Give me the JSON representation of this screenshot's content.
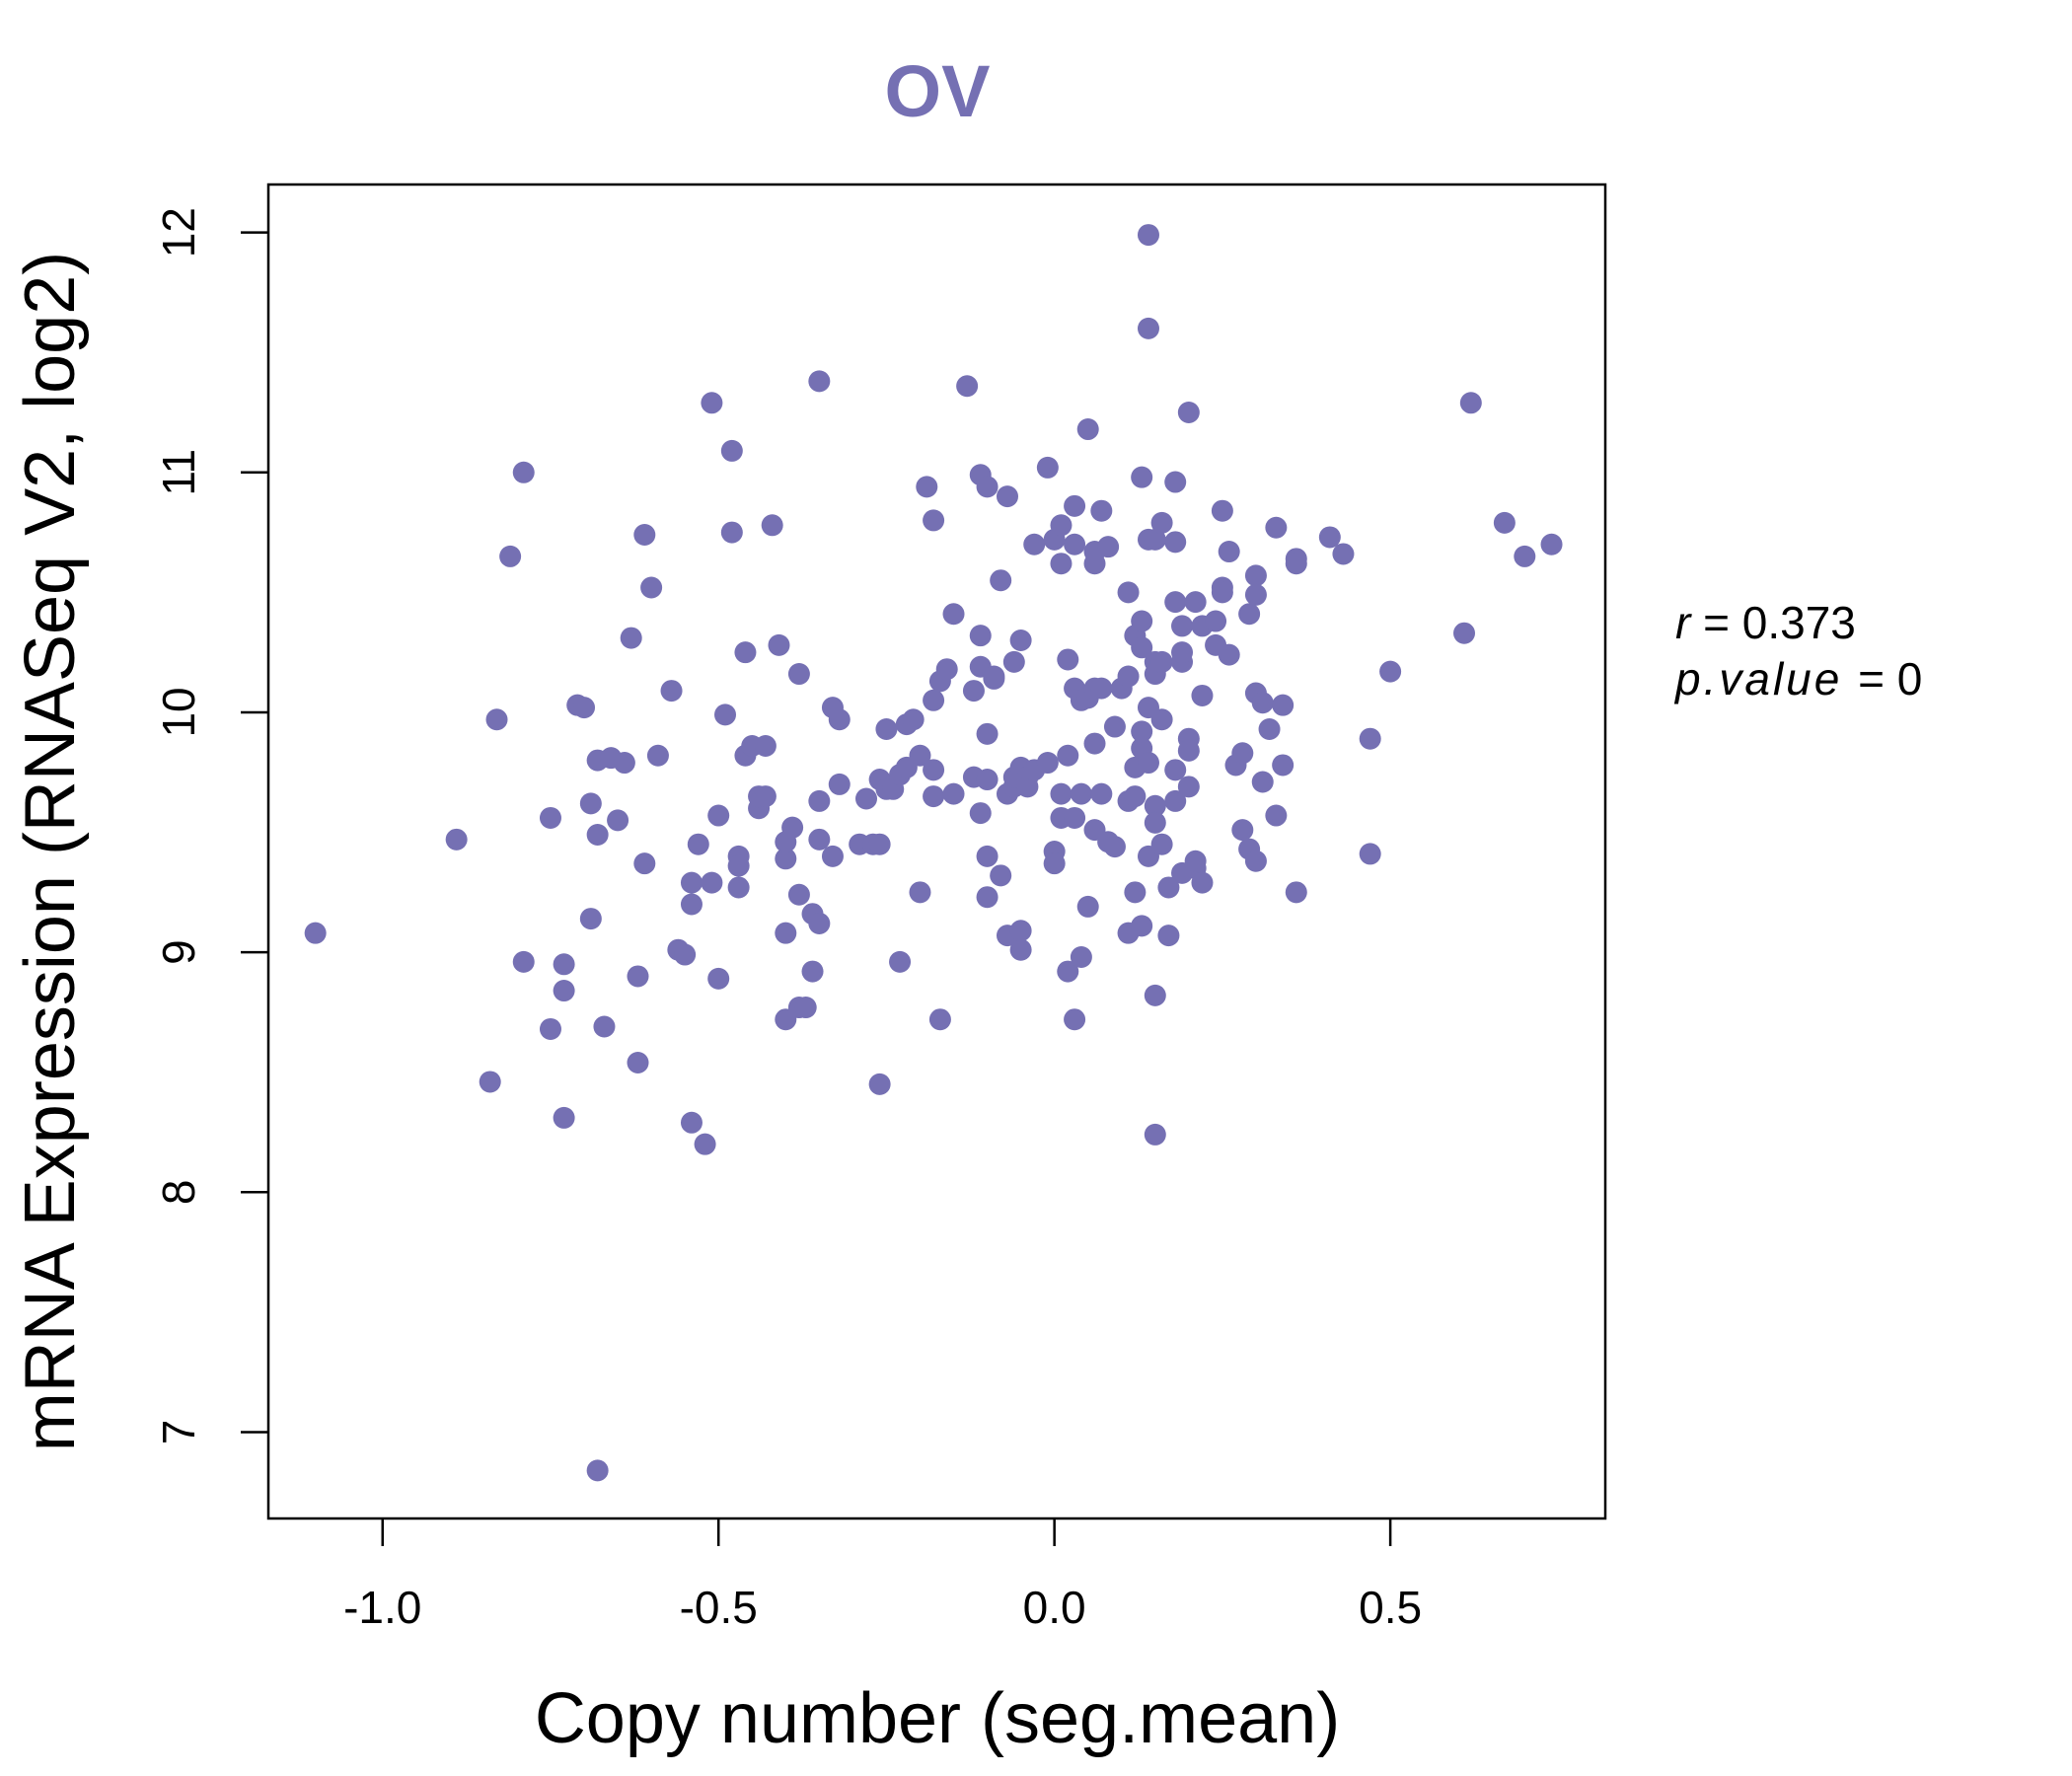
{
  "chart_data": {
    "type": "scatter",
    "title": "OV",
    "xlabel": "Copy number (seg.mean)",
    "ylabel": "mRNA Expression (RNASeq V2, log2)",
    "xlim": [
      -1.17,
      0.82
    ],
    "ylim": [
      6.64,
      12.2
    ],
    "x_ticks": [
      "-1.0",
      "-0.5",
      "0.0",
      "0.5"
    ],
    "x_tick_values": [
      -1.0,
      -0.5,
      0.0,
      0.5
    ],
    "y_ticks": [
      "7",
      "8",
      "9",
      "10",
      "11",
      "12"
    ],
    "y_tick_values": [
      7,
      8,
      9,
      10,
      11,
      12
    ],
    "grid": false,
    "legend": "none",
    "color": "#7570b3",
    "stats": {
      "r_label": "r",
      "r_value": "0.373",
      "p_label": "p.value",
      "p_value": "0"
    },
    "points": [
      [
        -1.1,
        9.08
      ],
      [
        -0.89,
        9.47
      ],
      [
        -0.84,
        8.46
      ],
      [
        -0.83,
        9.97
      ],
      [
        -0.81,
        10.65
      ],
      [
        -0.79,
        11.0
      ],
      [
        -0.79,
        8.96
      ],
      [
        -0.75,
        9.56
      ],
      [
        -0.75,
        8.68
      ],
      [
        -0.73,
        8.95
      ],
      [
        -0.73,
        8.84
      ],
      [
        -0.73,
        8.31
      ],
      [
        -0.71,
        10.03
      ],
      [
        -0.7,
        10.02
      ],
      [
        -0.69,
        9.62
      ],
      [
        -0.69,
        9.14
      ],
      [
        -0.68,
        9.8
      ],
      [
        -0.68,
        9.49
      ],
      [
        -0.68,
        6.84
      ],
      [
        -0.67,
        8.69
      ],
      [
        -0.66,
        9.81
      ],
      [
        -0.65,
        9.55
      ],
      [
        -0.64,
        9.79
      ],
      [
        -0.63,
        10.31
      ],
      [
        -0.62,
        8.9
      ],
      [
        -0.62,
        8.54
      ],
      [
        -0.61,
        10.74
      ],
      [
        -0.61,
        9.37
      ],
      [
        -0.6,
        10.52
      ],
      [
        -0.59,
        9.82
      ],
      [
        -0.57,
        10.09
      ],
      [
        -0.56,
        9.01
      ],
      [
        -0.55,
        8.99
      ],
      [
        -0.54,
        9.29
      ],
      [
        -0.54,
        9.2
      ],
      [
        -0.54,
        8.29
      ],
      [
        -0.53,
        9.45
      ],
      [
        -0.52,
        8.2
      ],
      [
        -0.51,
        11.29
      ],
      [
        -0.51,
        9.29
      ],
      [
        -0.5,
        8.89
      ],
      [
        -0.5,
        9.57
      ],
      [
        -0.49,
        9.99
      ],
      [
        -0.48,
        10.75
      ],
      [
        -0.48,
        11.09
      ],
      [
        -0.47,
        9.4
      ],
      [
        -0.47,
        9.36
      ],
      [
        -0.47,
        9.27
      ],
      [
        -0.46,
        10.25
      ],
      [
        -0.46,
        9.82
      ],
      [
        -0.45,
        9.86
      ],
      [
        -0.44,
        9.6
      ],
      [
        -0.44,
        9.65
      ],
      [
        -0.43,
        9.65
      ],
      [
        -0.43,
        9.86
      ],
      [
        -0.42,
        10.78
      ],
      [
        -0.41,
        10.28
      ],
      [
        -0.4,
        8.72
      ],
      [
        -0.4,
        9.08
      ],
      [
        -0.4,
        9.39
      ],
      [
        -0.4,
        9.46
      ],
      [
        -0.39,
        9.52
      ],
      [
        -0.38,
        10.16
      ],
      [
        -0.38,
        9.24
      ],
      [
        -0.38,
        8.77
      ],
      [
        -0.37,
        8.77
      ],
      [
        -0.36,
        9.16
      ],
      [
        -0.36,
        8.92
      ],
      [
        -0.35,
        11.38
      ],
      [
        -0.35,
        9.63
      ],
      [
        -0.35,
        9.47
      ],
      [
        -0.35,
        9.12
      ],
      [
        -0.33,
        10.02
      ],
      [
        -0.33,
        9.4
      ],
      [
        -0.32,
        9.97
      ],
      [
        -0.32,
        9.7
      ],
      [
        -0.29,
        9.45
      ],
      [
        -0.28,
        9.64
      ],
      [
        -0.27,
        9.45
      ],
      [
        -0.26,
        9.72
      ],
      [
        -0.26,
        9.45
      ],
      [
        -0.26,
        8.45
      ],
      [
        -0.25,
        9.93
      ],
      [
        -0.25,
        9.68
      ],
      [
        -0.24,
        9.68
      ],
      [
        -0.23,
        9.74
      ],
      [
        -0.23,
        8.96
      ],
      [
        -0.22,
        9.95
      ],
      [
        -0.22,
        9.77
      ],
      [
        -0.21,
        9.97
      ],
      [
        -0.2,
        9.82
      ],
      [
        -0.2,
        9.25
      ],
      [
        -0.19,
        10.94
      ],
      [
        -0.18,
        10.8
      ],
      [
        -0.18,
        10.05
      ],
      [
        -0.18,
        9.76
      ],
      [
        -0.18,
        9.65
      ],
      [
        -0.17,
        10.13
      ],
      [
        -0.17,
        8.72
      ],
      [
        -0.16,
        10.18
      ],
      [
        -0.15,
        10.41
      ],
      [
        -0.15,
        9.66
      ],
      [
        -0.13,
        11.36
      ],
      [
        -0.12,
        10.09
      ],
      [
        -0.12,
        9.73
      ],
      [
        -0.11,
        10.99
      ],
      [
        -0.11,
        10.32
      ],
      [
        -0.11,
        10.19
      ],
      [
        -0.11,
        9.58
      ],
      [
        -0.1,
        10.94
      ],
      [
        -0.1,
        9.91
      ],
      [
        -0.1,
        9.4
      ],
      [
        -0.1,
        9.72
      ],
      [
        -0.1,
        9.23
      ],
      [
        -0.09,
        10.14
      ],
      [
        -0.09,
        10.15
      ],
      [
        -0.08,
        10.55
      ],
      [
        -0.08,
        9.32
      ],
      [
        -0.07,
        10.9
      ],
      [
        -0.07,
        9.07
      ],
      [
        -0.07,
        9.66
      ],
      [
        -0.06,
        9.69
      ],
      [
        -0.06,
        9.73
      ],
      [
        -0.06,
        10.21
      ],
      [
        -0.05,
        10.3
      ],
      [
        -0.05,
        9.01
      ],
      [
        -0.05,
        9.09
      ],
      [
        -0.05,
        9.77
      ],
      [
        -0.04,
        9.73
      ],
      [
        -0.04,
        9.69
      ],
      [
        -0.03,
        10.7
      ],
      [
        -0.03,
        9.76
      ],
      [
        -0.01,
        9.79
      ],
      [
        -0.01,
        11.02
      ],
      [
        0.0,
        9.42
      ],
      [
        0.0,
        9.37
      ],
      [
        0.0,
        10.72
      ],
      [
        0.01,
        10.62
      ],
      [
        0.01,
        10.78
      ],
      [
        0.01,
        9.56
      ],
      [
        0.01,
        9.66
      ],
      [
        0.02,
        8.92
      ],
      [
        0.02,
        10.22
      ],
      [
        0.02,
        9.82
      ],
      [
        0.03,
        10.7
      ],
      [
        0.03,
        10.86
      ],
      [
        0.03,
        10.1
      ],
      [
        0.03,
        9.56
      ],
      [
        0.03,
        8.72
      ],
      [
        0.04,
        8.98
      ],
      [
        0.04,
        9.66
      ],
      [
        0.04,
        10.05
      ],
      [
        0.05,
        9.19
      ],
      [
        0.05,
        10.06
      ],
      [
        0.05,
        11.18
      ],
      [
        0.06,
        10.62
      ],
      [
        0.06,
        10.67
      ],
      [
        0.06,
        10.1
      ],
      [
        0.06,
        9.87
      ],
      [
        0.06,
        9.51
      ],
      [
        0.07,
        10.84
      ],
      [
        0.07,
        9.66
      ],
      [
        0.07,
        10.1
      ],
      [
        0.08,
        10.69
      ],
      [
        0.08,
        9.46
      ],
      [
        0.09,
        9.94
      ],
      [
        0.09,
        9.44
      ],
      [
        0.1,
        10.1
      ],
      [
        0.11,
        10.15
      ],
      [
        0.11,
        9.63
      ],
      [
        0.11,
        9.08
      ],
      [
        0.11,
        10.5
      ],
      [
        0.12,
        10.32
      ],
      [
        0.12,
        9.77
      ],
      [
        0.12,
        9.65
      ],
      [
        0.12,
        9.25
      ],
      [
        0.13,
        10.98
      ],
      [
        0.13,
        10.38
      ],
      [
        0.13,
        10.27
      ],
      [
        0.13,
        9.85
      ],
      [
        0.13,
        9.92
      ],
      [
        0.13,
        9.11
      ],
      [
        0.14,
        11.6
      ],
      [
        0.14,
        11.99
      ],
      [
        0.14,
        10.72
      ],
      [
        0.14,
        10.02
      ],
      [
        0.14,
        9.79
      ],
      [
        0.14,
        9.4
      ],
      [
        0.15,
        10.72
      ],
      [
        0.15,
        10.21
      ],
      [
        0.15,
        10.16
      ],
      [
        0.15,
        9.61
      ],
      [
        0.15,
        9.54
      ],
      [
        0.15,
        8.82
      ],
      [
        0.15,
        8.24
      ],
      [
        0.16,
        10.79
      ],
      [
        0.16,
        10.21
      ],
      [
        0.16,
        9.45
      ],
      [
        0.16,
        9.97
      ],
      [
        0.17,
        9.27
      ],
      [
        0.17,
        9.07
      ],
      [
        0.18,
        10.96
      ],
      [
        0.18,
        10.46
      ],
      [
        0.18,
        9.76
      ],
      [
        0.18,
        9.63
      ],
      [
        0.18,
        10.71
      ],
      [
        0.19,
        10.21
      ],
      [
        0.19,
        10.25
      ],
      [
        0.19,
        9.33
      ],
      [
        0.19,
        10.36
      ],
      [
        0.2,
        11.25
      ],
      [
        0.2,
        9.89
      ],
      [
        0.2,
        9.84
      ],
      [
        0.2,
        9.69
      ],
      [
        0.21,
        10.46
      ],
      [
        0.21,
        9.35
      ],
      [
        0.21,
        9.38
      ],
      [
        0.22,
        10.07
      ],
      [
        0.22,
        9.29
      ],
      [
        0.22,
        10.36
      ],
      [
        0.24,
        10.38
      ],
      [
        0.24,
        10.28
      ],
      [
        0.25,
        10.84
      ],
      [
        0.25,
        10.52
      ],
      [
        0.25,
        10.5
      ],
      [
        0.26,
        10.24
      ],
      [
        0.26,
        10.67
      ],
      [
        0.27,
        9.78
      ],
      [
        0.28,
        9.83
      ],
      [
        0.28,
        9.51
      ],
      [
        0.29,
        10.41
      ],
      [
        0.29,
        9.43
      ],
      [
        0.3,
        10.57
      ],
      [
        0.3,
        10.49
      ],
      [
        0.3,
        10.08
      ],
      [
        0.3,
        9.38
      ],
      [
        0.31,
        9.71
      ],
      [
        0.31,
        10.04
      ],
      [
        0.32,
        9.93
      ],
      [
        0.33,
        10.77
      ],
      [
        0.33,
        9.57
      ],
      [
        0.34,
        10.03
      ],
      [
        0.34,
        9.78
      ],
      [
        0.36,
        10.64
      ],
      [
        0.36,
        10.62
      ],
      [
        0.36,
        9.25
      ],
      [
        0.41,
        10.73
      ],
      [
        0.43,
        10.66
      ],
      [
        0.47,
        9.89
      ],
      [
        0.47,
        9.41
      ],
      [
        0.5,
        10.17
      ],
      [
        0.61,
        10.33
      ],
      [
        0.62,
        11.29
      ],
      [
        0.67,
        10.79
      ],
      [
        0.7,
        10.65
      ],
      [
        0.74,
        10.7
      ]
    ]
  }
}
